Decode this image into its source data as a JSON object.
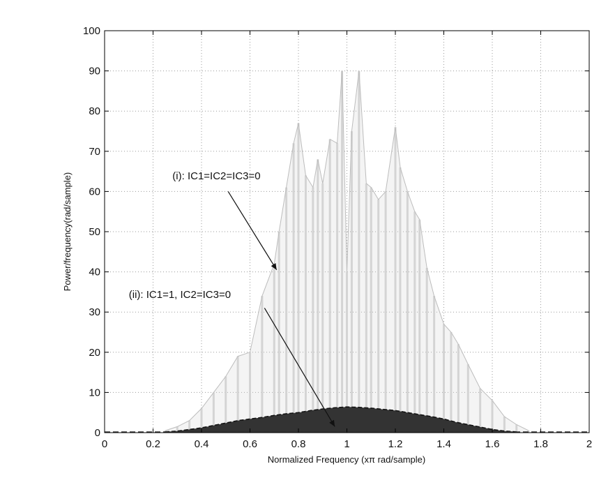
{
  "chart_data": {
    "type": "line",
    "title": "",
    "xlabel": "Normalized Frequency (xπ rad/sample)",
    "ylabel": "Power/frequency(rad/sample)",
    "xlim": [
      0,
      2
    ],
    "ylim": [
      0,
      100
    ],
    "xticks": [
      0,
      0.2,
      0.4,
      0.6,
      0.8,
      1,
      1.2,
      1.4,
      1.6,
      1.8,
      2
    ],
    "xtick_labels": [
      "0",
      "0.2",
      "0.4",
      "0.6",
      "0.8",
      "1",
      "1.2",
      "1.4",
      "1.6",
      "1.8",
      "2"
    ],
    "yticks": [
      0,
      10,
      20,
      30,
      40,
      50,
      60,
      70,
      80,
      90,
      100
    ],
    "ytick_labels": [
      "0",
      "10",
      "20",
      "30",
      "40",
      "50",
      "60",
      "70",
      "80",
      "90",
      "100"
    ],
    "grid": true,
    "colors": {
      "series_i": "#d4d4d4",
      "series_ii": "#333333",
      "axis": "#000000",
      "grid": "#9a9a9a"
    },
    "series": [
      {
        "label": "(i): IC1=IC2=IC3=0",
        "x": [
          0.25,
          0.3,
          0.35,
          0.4,
          0.45,
          0.5,
          0.55,
          0.6,
          0.65,
          0.7,
          0.72,
          0.75,
          0.78,
          0.8,
          0.83,
          0.86,
          0.88,
          0.9,
          0.93,
          0.96,
          0.98,
          1.0,
          1.02,
          1.05,
          1.08,
          1.1,
          1.13,
          1.16,
          1.2,
          1.22,
          1.25,
          1.28,
          1.3,
          1.33,
          1.36,
          1.4,
          1.43,
          1.46,
          1.5,
          1.55,
          1.6,
          1.65,
          1.7,
          1.75
        ],
        "y": [
          0.5,
          1.5,
          3,
          6,
          10,
          14,
          19,
          20,
          34,
          42,
          50,
          61,
          72,
          77,
          64,
          61,
          68,
          62,
          73,
          72,
          90,
          40,
          75,
          90,
          62,
          61,
          58,
          60,
          76,
          66,
          60,
          55,
          53,
          41,
          34,
          27,
          25,
          22,
          17,
          11,
          8,
          4,
          2,
          0.5
        ]
      },
      {
        "label": "(ii): IC1=1, IC2=IC3=0",
        "x": [
          0.25,
          0.3,
          0.35,
          0.4,
          0.45,
          0.5,
          0.55,
          0.6,
          0.65,
          0.7,
          0.75,
          0.8,
          0.85,
          0.9,
          0.95,
          1.0,
          1.05,
          1.1,
          1.15,
          1.2,
          1.25,
          1.3,
          1.35,
          1.4,
          1.45,
          1.5,
          1.55,
          1.6,
          1.65,
          1.7
        ],
        "y": [
          0.2,
          0.4,
          0.8,
          1.2,
          1.8,
          2.4,
          3.0,
          3.4,
          3.8,
          4.3,
          4.7,
          5.0,
          5.5,
          5.9,
          6.2,
          6.4,
          6.3,
          6.1,
          5.8,
          5.5,
          5.0,
          4.5,
          4.0,
          3.4,
          2.6,
          2.0,
          1.4,
          0.8,
          0.4,
          0.2
        ]
      }
    ],
    "annotations": [
      {
        "text": "(i): IC1=IC2=IC3=0",
        "text_at": [
          0.28,
          63
        ],
        "arrow_tail": [
          0.51,
          60
        ],
        "arrow_head": [
          0.71,
          40.5
        ]
      },
      {
        "text": "(ii): IC1=1, IC2=IC3=0",
        "text_at": [
          0.1,
          33.5
        ],
        "arrow_tail": [
          0.66,
          31
        ],
        "arrow_head": [
          0.95,
          1.5
        ]
      }
    ]
  }
}
